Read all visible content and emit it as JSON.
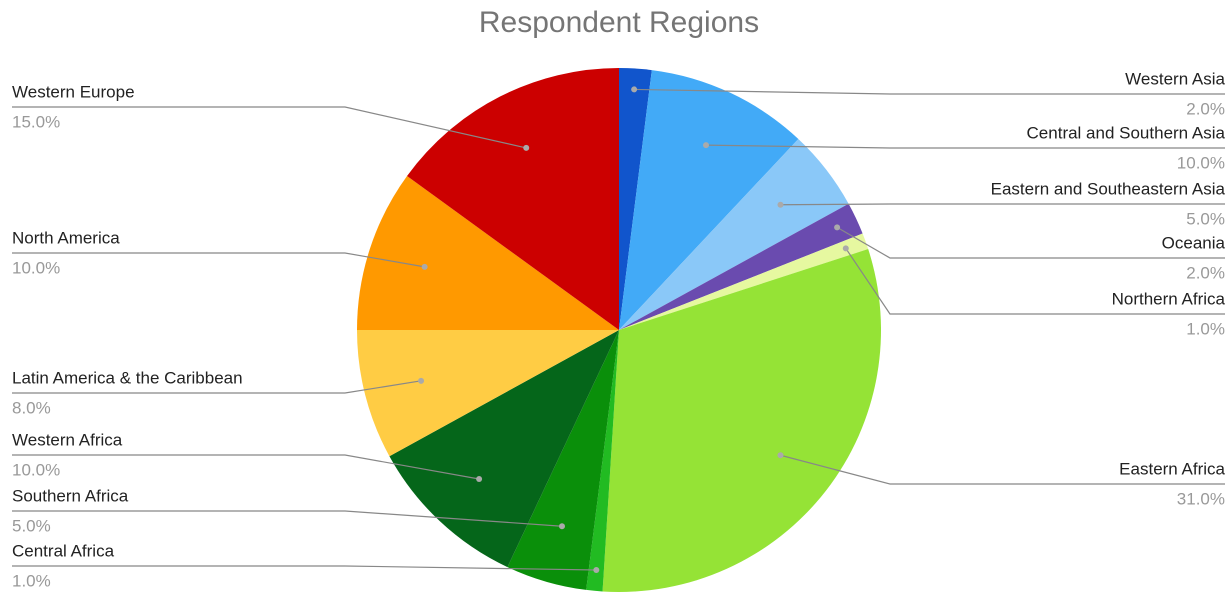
{
  "chart_data": {
    "type": "pie",
    "title": "Respondent Regions",
    "categories": [
      "Western Asia",
      "Central and Southern Asia",
      "Eastern and Southeastern Asia",
      "Oceania",
      "Northern Africa",
      "Eastern Africa",
      "Central Africa",
      "Southern Africa",
      "Western Africa",
      "Latin America & the Caribbean",
      "North America",
      "Western Europe"
    ],
    "values": [
      2,
      10,
      5,
      2,
      1,
      31,
      1,
      5,
      10,
      8,
      10,
      15
    ],
    "value_labels": [
      "2.0%",
      "10.0%",
      "5.0%",
      "2.0%",
      "1.0%",
      "31.0%",
      "1.0%",
      "5.0%",
      "10.0%",
      "8.0%",
      "10.0%",
      "15.0%"
    ],
    "colors": [
      "#1155cc",
      "#42aaf7",
      "#8ac8f8",
      "#6a4baf",
      "#e6f8a0",
      "#95e336",
      "#22bb22",
      "#0a8f0a",
      "#05661a",
      "#ffcc44",
      "#ff9900",
      "#cc0000"
    ]
  }
}
